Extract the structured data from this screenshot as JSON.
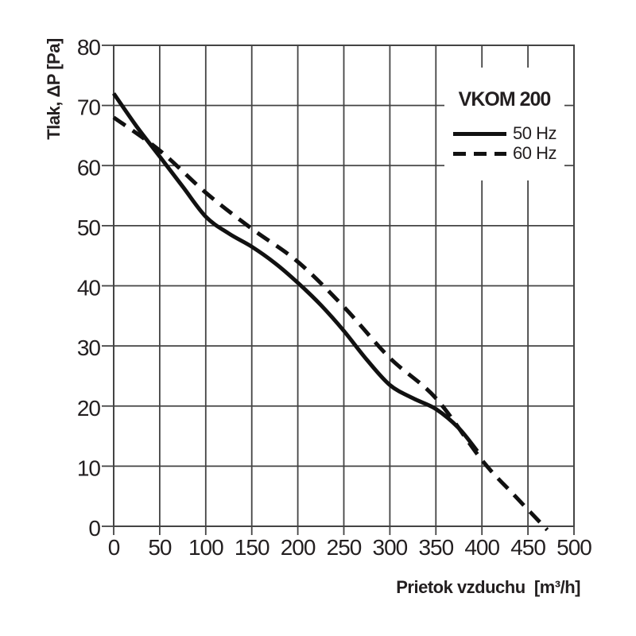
{
  "colors": {
    "background": "#ffffff",
    "curve": "#111111",
    "grid": "#444444",
    "text": "#231f20"
  },
  "chart_data": {
    "type": "line",
    "title": "VKOM 200",
    "xlabel": "Prietok vzduchu  [m³/h]",
    "ylabel": "Tlak, ΔP [Pa]",
    "xlim": [
      0,
      500
    ],
    "ylim": [
      0,
      80
    ],
    "x_ticks": [
      0,
      50,
      100,
      150,
      200,
      250,
      300,
      350,
      400,
      450,
      500
    ],
    "y_ticks": [
      0,
      10,
      20,
      30,
      40,
      50,
      60,
      70,
      80
    ],
    "grid": true,
    "legend_position": "upper-right",
    "series": [
      {
        "name": "50 Hz",
        "style": "solid",
        "color": "#111111",
        "points": [
          [
            0,
            72
          ],
          [
            25,
            66.5
          ],
          [
            50,
            61.5
          ],
          [
            75,
            56.5
          ],
          [
            100,
            51.5
          ],
          [
            125,
            48.7
          ],
          [
            150,
            46.5
          ],
          [
            175,
            43.8
          ],
          [
            200,
            40.5
          ],
          [
            225,
            36.8
          ],
          [
            250,
            32.5
          ],
          [
            275,
            27.7
          ],
          [
            300,
            23.5
          ],
          [
            325,
            21.3
          ],
          [
            350,
            19.5
          ],
          [
            375,
            16.3
          ],
          [
            395,
            12.5
          ]
        ]
      },
      {
        "name": "60 Hz",
        "style": "dashed",
        "color": "#111111",
        "points": [
          [
            0,
            68
          ],
          [
            50,
            62.5
          ],
          [
            100,
            55.5
          ],
          [
            150,
            49.5
          ],
          [
            200,
            44
          ],
          [
            250,
            36.5
          ],
          [
            300,
            28
          ],
          [
            350,
            21.3
          ],
          [
            400,
            11
          ],
          [
            435,
            5.2
          ],
          [
            471,
            -0.6
          ]
        ]
      }
    ]
  },
  "legend": {
    "title": "VKOM 200",
    "items": [
      {
        "label": "50 Hz",
        "line": "solid"
      },
      {
        "label": "60 Hz",
        "line": "dashed"
      }
    ]
  }
}
